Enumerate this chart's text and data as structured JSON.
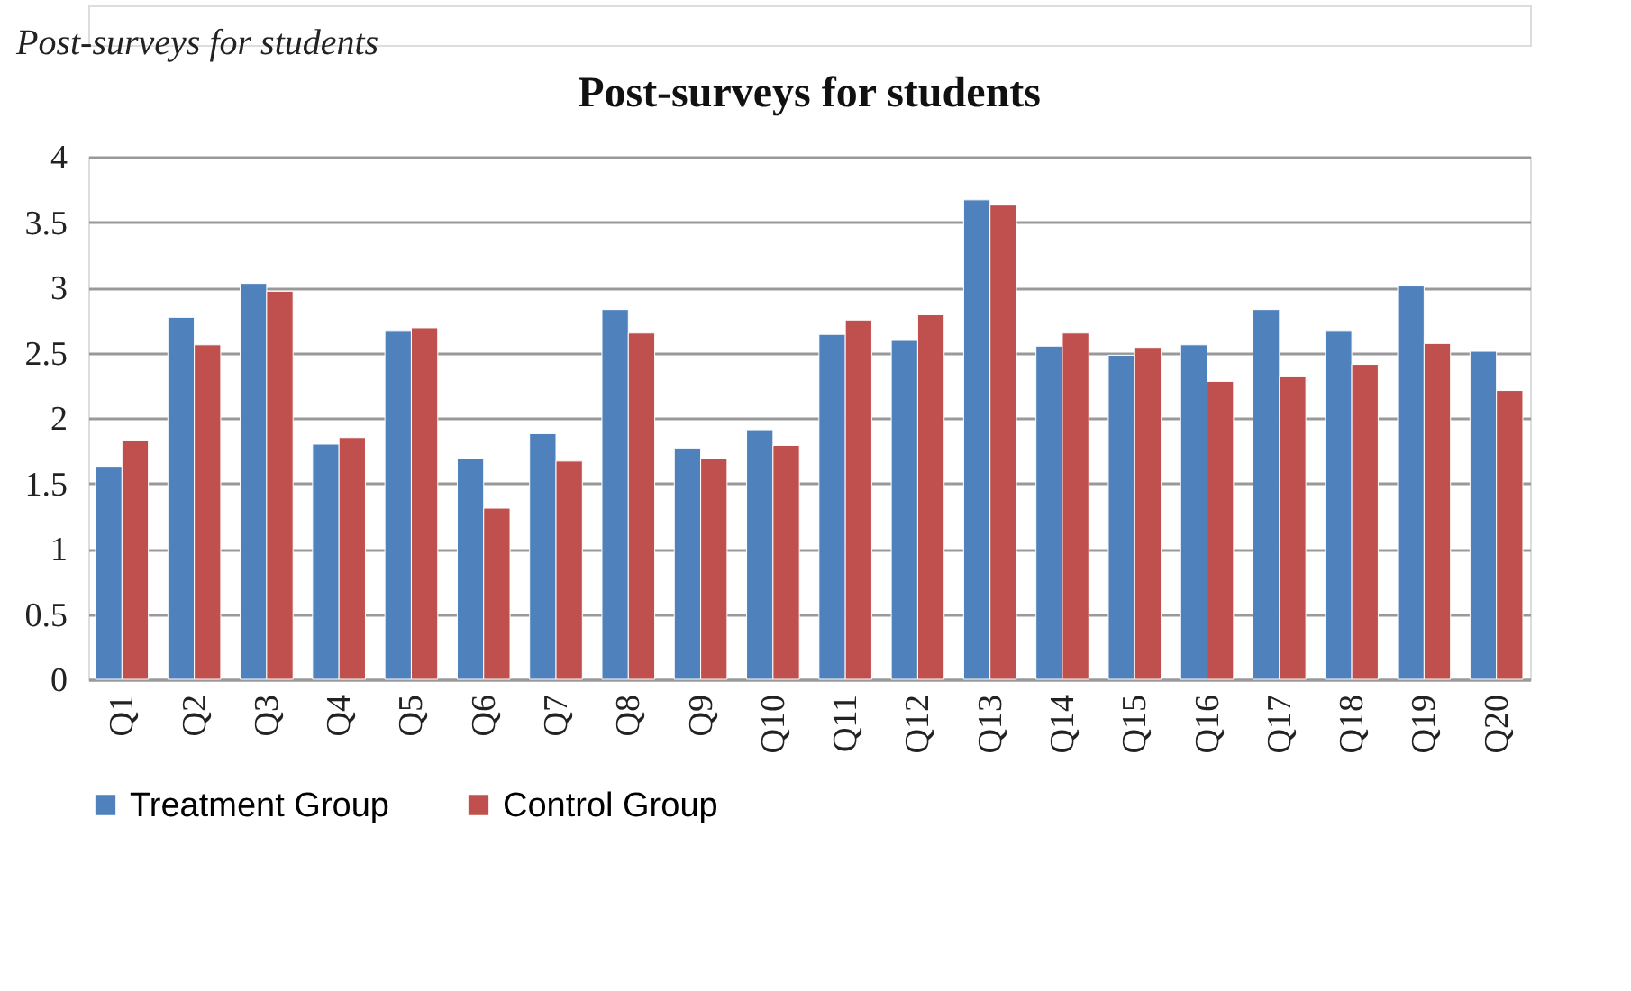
{
  "chart_data": {
    "type": "bar",
    "title": "Post-surveys for students",
    "annotations": [
      "Post-surveys for students"
    ],
    "categories": [
      "Q1",
      "Q2",
      "Q3",
      "Q4",
      "Q5",
      "Q6",
      "Q7",
      "Q8",
      "Q9",
      "Q10",
      "Q11",
      "Q12",
      "Q13",
      "Q14",
      "Q15",
      "Q16",
      "Q17",
      "Q18",
      "Q19",
      "Q20"
    ],
    "series": [
      {
        "name": "Treatment Group",
        "color": "#4f81bd",
        "values": [
          1.63,
          2.77,
          3.03,
          1.8,
          2.67,
          1.69,
          1.88,
          2.83,
          1.77,
          1.91,
          2.64,
          2.6,
          3.67,
          2.55,
          2.48,
          2.56,
          2.83,
          2.67,
          3.01,
          2.51
        ]
      },
      {
        "name": "Control Group",
        "color": "#c0504d",
        "values": [
          1.83,
          2.56,
          2.97,
          1.85,
          2.69,
          1.31,
          1.67,
          2.65,
          1.69,
          1.79,
          2.75,
          2.79,
          3.63,
          2.65,
          2.54,
          2.28,
          2.32,
          2.41,
          2.57,
          2.21
        ]
      }
    ],
    "ylim": [
      0,
      4
    ],
    "yticks": [
      0,
      0.5,
      1,
      1.5,
      2,
      2.5,
      3,
      3.5,
      4
    ],
    "grid": "y",
    "legend": "bottom"
  }
}
